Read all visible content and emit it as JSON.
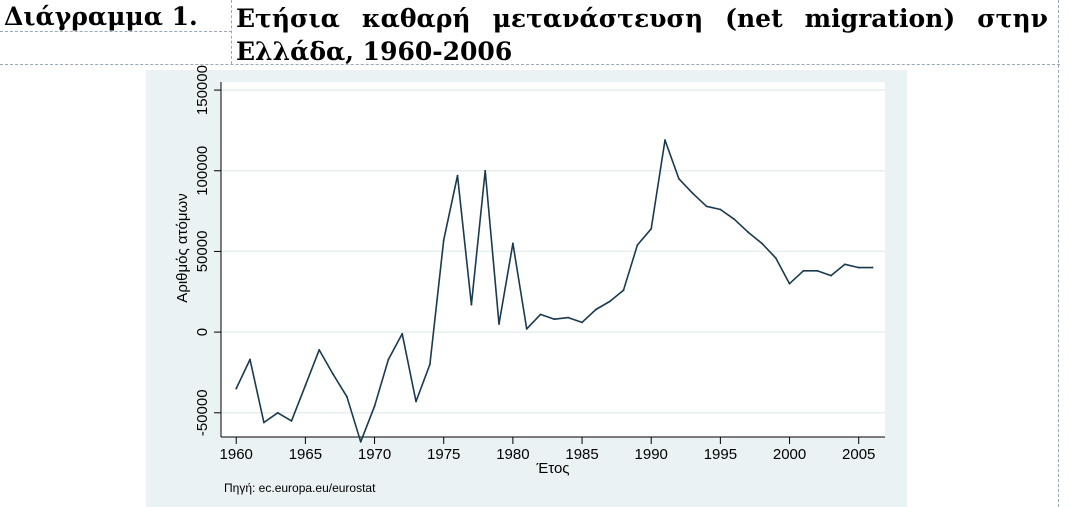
{
  "caption": {
    "label": "Διάγραμμα 1.",
    "title_line1": "Ετήσια καθαρή μετανάστευση (net migration) στην",
    "title_line2": "Ελλάδα, 1960-2006"
  },
  "source_note": "Πηγή: ec.europa.eu/eurostat",
  "colors": {
    "panel": "#eaf2f3",
    "plot": "#ffffff",
    "line": "#1a3a4f",
    "grid": "#e6eef0"
  },
  "chart_data": {
    "type": "line",
    "title": "",
    "xlabel": "Έτος",
    "ylabel": "Αριθμός ατόμων",
    "xlim": [
      1960,
      2006
    ],
    "ylim": [
      -65000,
      155000
    ],
    "x_ticks": [
      "1960",
      "1965",
      "1970",
      "1975",
      "1980",
      "1985",
      "1990",
      "1995",
      "2000",
      "2005"
    ],
    "y_ticks": [
      "-50000",
      "0",
      "50000",
      "100000",
      "150000"
    ],
    "grid": true,
    "legend": "none",
    "series": [
      {
        "x": [
          1960,
          1961,
          1962,
          1963,
          1964,
          1965,
          1966,
          1967,
          1968,
          1969,
          1970,
          1971,
          1972,
          1973,
          1974,
          1975,
          1976,
          1977,
          1978,
          1979,
          1980,
          1981,
          1982,
          1983,
          1984,
          1985,
          1986,
          1987,
          1988,
          1989,
          1990,
          1991,
          1992,
          1993,
          1994,
          1995,
          1996,
          1997,
          1998,
          1999,
          2000,
          2001,
          2002,
          2003,
          2004,
          2005,
          2006
        ],
        "values": [
          -35000,
          -17000,
          -56000,
          -50000,
          -55000,
          -33000,
          -11000,
          -26000,
          -40000,
          -68000,
          -46000,
          -17000,
          -1000,
          -43000,
          -20000,
          57000,
          97000,
          17000,
          100000,
          5000,
          55000,
          2000,
          11000,
          8000,
          9000,
          6000,
          14000,
          19000,
          26000,
          54000,
          64000,
          119000,
          95000,
          86000,
          78000,
          76000,
          70000,
          62000,
          55000,
          46000,
          30000,
          38000,
          38000,
          35000,
          42000,
          40000,
          40000
        ]
      }
    ]
  }
}
